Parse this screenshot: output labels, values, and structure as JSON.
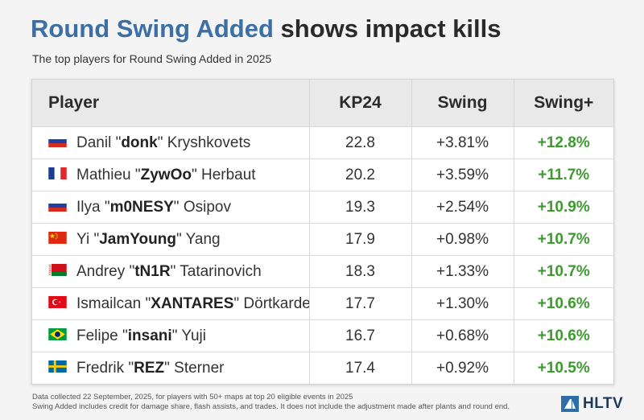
{
  "header": {
    "title_accent": "Round Swing Added",
    "title_rest": " shows impact kills",
    "subtitle": "The top players for Round Swing Added in 2025"
  },
  "chart_data": {
    "type": "table",
    "columns": [
      "Player",
      "KP24",
      "Swing",
      "Swing+"
    ],
    "rows": [
      {
        "flag": "ru",
        "first": "Danil \"",
        "nick": "donk",
        "last": "\" Kryshkovets",
        "kp24": "22.8",
        "swing": "+3.81%",
        "swing_plus": "+12.8%"
      },
      {
        "flag": "fr",
        "first": "Mathieu \"",
        "nick": "ZywOo",
        "last": "\" Herbaut",
        "kp24": "20.2",
        "swing": "+3.59%",
        "swing_plus": "+11.7%"
      },
      {
        "flag": "ru",
        "first": "Ilya \"",
        "nick": "m0NESY",
        "last": "\" Osipov",
        "kp24": "19.3",
        "swing": "+2.54%",
        "swing_plus": "+10.9%"
      },
      {
        "flag": "cn",
        "first": "Yi \"",
        "nick": "JamYoung",
        "last": "\" Yang",
        "kp24": "17.9",
        "swing": "+0.98%",
        "swing_plus": "+10.7%"
      },
      {
        "flag": "by",
        "first": "Andrey \"",
        "nick": "tN1R",
        "last": "\" Tatarinovich",
        "kp24": "18.3",
        "swing": "+1.33%",
        "swing_plus": "+10.7%"
      },
      {
        "flag": "tr",
        "first": "Ismailcan \"",
        "nick": "XANTARES",
        "last": "\" Dörtkardeş",
        "kp24": "17.7",
        "swing": "+1.30%",
        "swing_plus": "+10.6%"
      },
      {
        "flag": "br",
        "first": "Felipe \"",
        "nick": "insani",
        "last": "\" Yuji",
        "kp24": "16.7",
        "swing": "+0.68%",
        "swing_plus": "+10.6%"
      },
      {
        "flag": "se",
        "first": "Fredrik \"",
        "nick": "REZ",
        "last": "\" Sterner",
        "kp24": "17.4",
        "swing": "+0.92%",
        "swing_plus": "+10.5%"
      }
    ]
  },
  "footnote": {
    "line1": "Data collected 22 September, 2025, for players with 50+ maps at top 20 eligible events in 2025",
    "line2": "Swing Added includes credit for damage share, flash assists, and trades. It does not include the adjustment made after plants and round end."
  },
  "logo": {
    "text": "HLTV",
    "icon": "hltv-logo-icon"
  },
  "colors": {
    "accent": "#3b6fa6",
    "positive": "#3c9a2e",
    "header_bg": "#e9e9e9"
  }
}
